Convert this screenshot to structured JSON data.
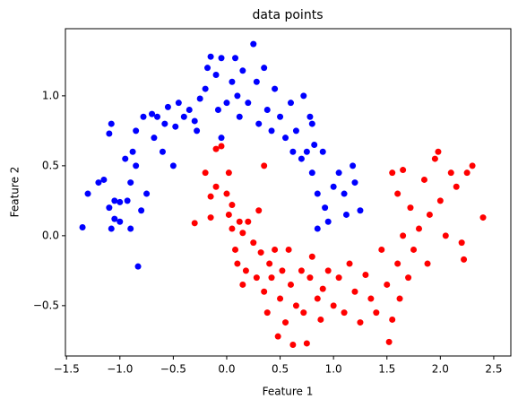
{
  "chart_data": {
    "type": "scatter",
    "title": "data points",
    "xlabel": "Feature 1",
    "ylabel": "Feature 2",
    "xlim": [
      -1.51,
      2.66
    ],
    "ylim": [
      -0.86,
      1.48
    ],
    "xticks": [
      {
        "value": -1.5,
        "label": "−1.5"
      },
      {
        "value": -1,
        "label": "−1.0"
      },
      {
        "value": -0.5,
        "label": "−0.5"
      },
      {
        "value": 0,
        "label": "0.0"
      },
      0.5,
      {
        "value": 1,
        "label": "1.0"
      },
      1.5,
      {
        "value": 2,
        "label": "2.0"
      },
      2.5
    ],
    "yticks": [
      {
        "value": -0.5,
        "label": "−0.5"
      },
      {
        "value": 0,
        "label": "0.0"
      },
      0.5,
      {
        "value": 1,
        "label": "1.0"
      }
    ],
    "series": [
      {
        "color": "#0000ff",
        "x": [
          -1.35,
          -1.3,
          -1.2,
          -1.15,
          -1.1,
          -1.08,
          -1.1,
          -1.05,
          -1.05,
          -1.08,
          -1.0,
          -1.0,
          -0.95,
          -0.93,
          -0.9,
          -0.88,
          -0.85,
          -0.85,
          -0.83,
          -0.8,
          -0.78,
          -0.75,
          -0.7,
          -0.68,
          -0.65,
          -0.6,
          -0.58,
          -0.55,
          -0.5,
          -0.48,
          -0.45,
          -0.4,
          -0.35,
          -0.3,
          -0.28,
          -0.25,
          -0.2,
          -0.18,
          -0.15,
          -0.1,
          -0.05,
          -0.08,
          -0.05,
          0.0,
          0.05,
          0.08,
          0.1,
          0.12,
          0.15,
          0.2,
          0.25,
          0.28,
          0.3,
          0.35,
          0.38,
          0.42,
          0.45,
          0.5,
          0.55,
          0.6,
          0.62,
          0.65,
          0.7,
          0.72,
          0.75,
          0.78,
          0.8,
          0.82,
          0.85,
          0.85,
          0.9,
          0.92,
          0.95,
          1.0,
          1.05,
          1.1,
          1.12,
          1.18,
          1.2,
          1.25,
          0.8,
          -0.9
        ],
        "values": [
          0.06,
          0.3,
          0.38,
          0.4,
          0.73,
          0.8,
          0.2,
          0.25,
          0.12,
          0.05,
          0.1,
          0.24,
          0.55,
          0.25,
          0.38,
          0.6,
          0.75,
          0.5,
          -0.22,
          0.18,
          0.85,
          0.3,
          0.87,
          0.7,
          0.85,
          0.6,
          0.8,
          0.92,
          0.5,
          0.78,
          0.95,
          0.85,
          0.9,
          0.82,
          0.75,
          0.98,
          1.05,
          1.2,
          1.28,
          1.15,
          1.27,
          0.9,
          0.7,
          0.95,
          1.1,
          1.27,
          1.0,
          0.85,
          1.18,
          0.95,
          1.37,
          1.1,
          0.8,
          1.2,
          0.9,
          0.75,
          1.05,
          0.85,
          0.7,
          0.95,
          0.6,
          0.75,
          0.55,
          1.0,
          0.6,
          0.85,
          0.45,
          0.65,
          0.3,
          0.05,
          0.6,
          0.2,
          0.1,
          0.35,
          0.45,
          0.3,
          0.15,
          0.5,
          0.38,
          0.18,
          0.8,
          0.05
        ]
      },
      {
        "color": "#ff0000",
        "x": [
          -0.3,
          -0.2,
          -0.15,
          -0.15,
          -0.1,
          -0.1,
          -0.05,
          0.0,
          0.02,
          0.02,
          0.05,
          0.05,
          0.08,
          0.1,
          0.12,
          0.15,
          0.15,
          0.18,
          0.2,
          0.25,
          0.28,
          0.3,
          0.32,
          0.35,
          0.35,
          0.38,
          0.4,
          0.42,
          0.45,
          0.48,
          0.5,
          0.52,
          0.55,
          0.58,
          0.6,
          0.62,
          0.65,
          0.7,
          0.72,
          0.75,
          0.78,
          0.8,
          0.85,
          0.88,
          0.9,
          0.95,
          1.0,
          1.05,
          1.1,
          1.15,
          1.2,
          1.25,
          1.3,
          1.35,
          1.4,
          1.45,
          1.5,
          1.52,
          1.55,
          1.6,
          1.62,
          1.65,
          1.7,
          1.72,
          1.75,
          1.8,
          1.85,
          1.88,
          1.9,
          1.95,
          1.98,
          2.0,
          2.05,
          2.1,
          2.15,
          2.2,
          2.25,
          2.3,
          2.4,
          1.6,
          1.55,
          1.65,
          2.22
        ],
        "values": [
          0.09,
          0.45,
          0.28,
          0.13,
          0.35,
          0.62,
          0.64,
          0.3,
          0.45,
          0.15,
          0.22,
          0.05,
          -0.1,
          -0.2,
          0.1,
          0.02,
          -0.35,
          -0.25,
          0.1,
          -0.05,
          -0.3,
          0.18,
          -0.12,
          0.5,
          -0.4,
          -0.55,
          -0.2,
          -0.3,
          -0.1,
          -0.72,
          -0.45,
          -0.25,
          -0.62,
          -0.1,
          -0.35,
          -0.78,
          -0.5,
          -0.25,
          -0.55,
          -0.77,
          -0.3,
          -0.15,
          -0.45,
          -0.6,
          -0.38,
          -0.25,
          -0.5,
          -0.3,
          -0.55,
          -0.2,
          -0.4,
          -0.62,
          -0.28,
          -0.45,
          -0.55,
          -0.1,
          -0.35,
          -0.76,
          -0.6,
          -0.2,
          -0.45,
          0.0,
          -0.3,
          0.2,
          -0.1,
          0.05,
          0.4,
          -0.2,
          0.15,
          0.55,
          0.6,
          0.25,
          0.0,
          0.45,
          0.35,
          -0.05,
          0.45,
          0.5,
          0.13,
          0.3,
          0.45,
          0.47,
          -0.17
        ]
      }
    ]
  }
}
